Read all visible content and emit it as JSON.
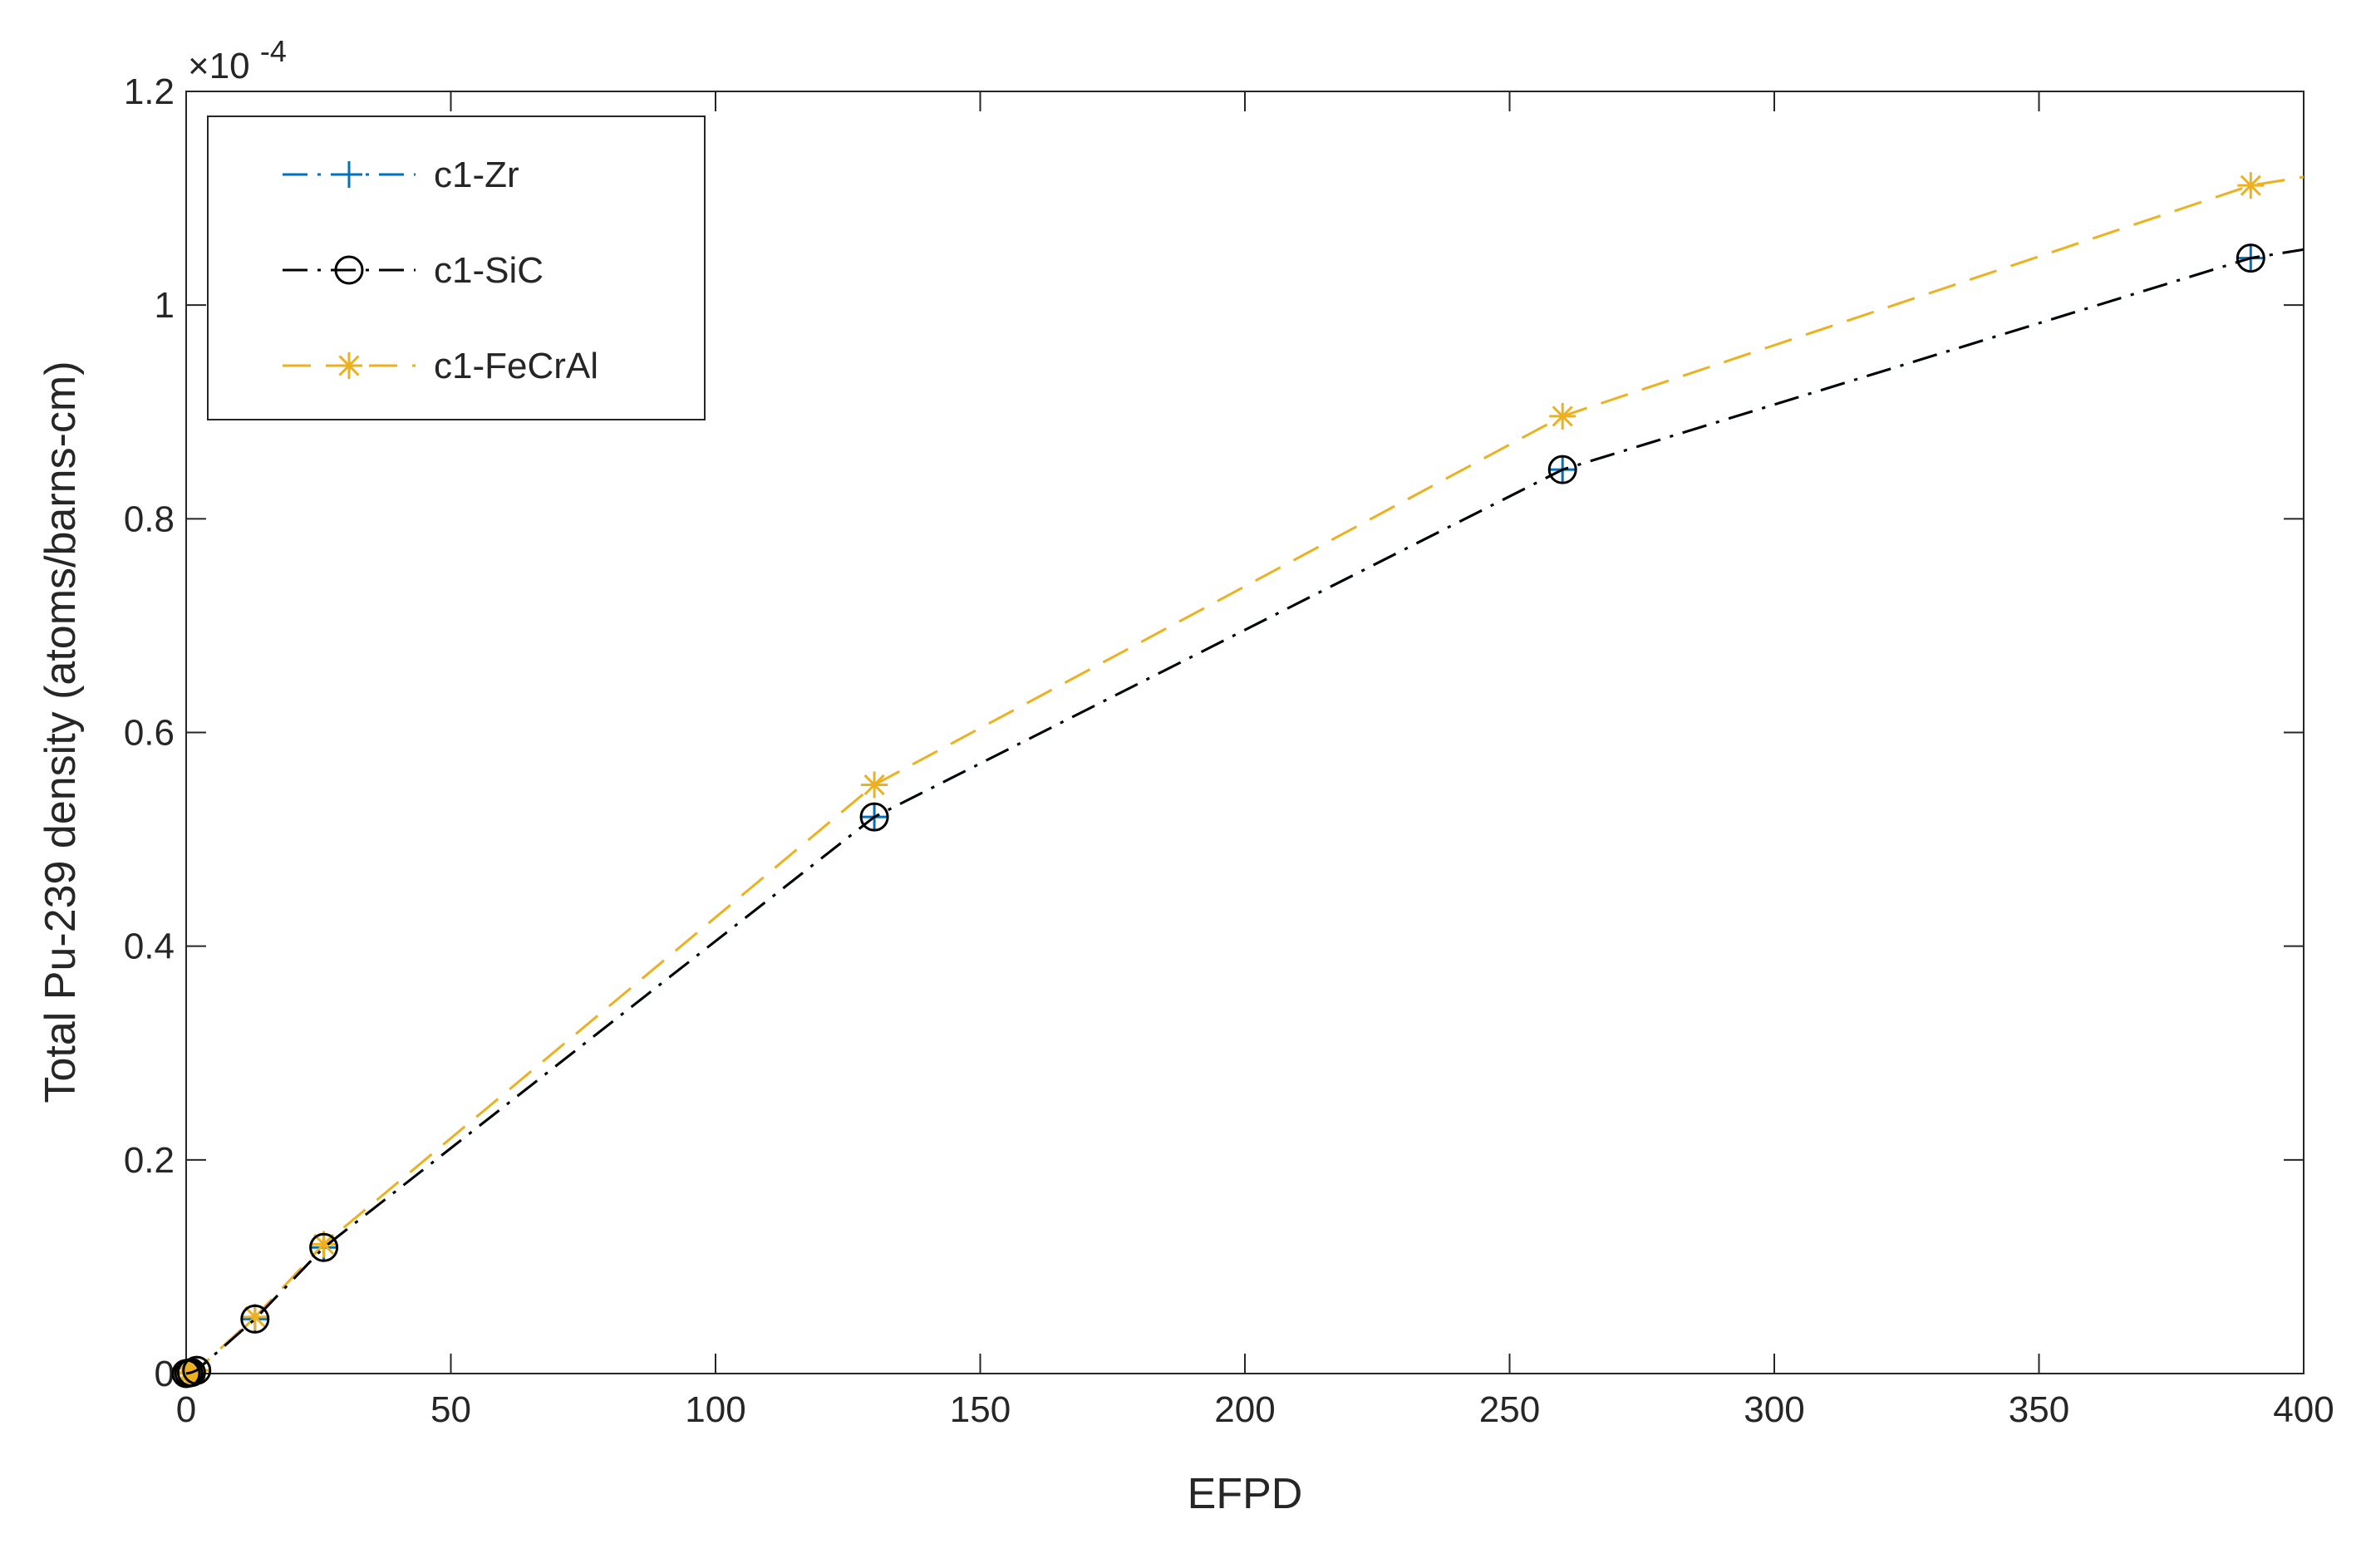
{
  "chart_data": {
    "type": "line",
    "xlabel": "EFPD",
    "ylabel": "Total Pu-239 density (atoms/barns-cm)",
    "y_multiplier": "×10",
    "y_exponent": "-4",
    "xlim": [
      0,
      400
    ],
    "ylim": [
      0,
      1.2
    ],
    "x_ticks": [
      0,
      50,
      100,
      150,
      200,
      250,
      300,
      350,
      400
    ],
    "y_ticks": [
      0,
      0.2,
      0.4,
      0.6,
      0.8,
      1.0,
      1.2
    ],
    "x_tick_labels": [
      "0",
      "50",
      "100",
      "150",
      "200",
      "250",
      "300",
      "350",
      "400"
    ],
    "y_tick_labels": [
      "0",
      "0.2",
      "0.4",
      "0.6",
      "0.8",
      "1",
      "1.2"
    ],
    "grid": false,
    "legend_position": "top-left",
    "series": [
      {
        "name": "c1-Zr",
        "color": "#0072BD",
        "line_style": "dash-dot",
        "marker": "plus",
        "x": [
          0,
          0.5,
          1,
          2,
          13,
          26,
          130,
          260,
          390,
          400
        ],
        "y": [
          0,
          0.0005,
          0.001,
          0.003,
          0.051,
          0.118,
          0.521,
          0.846,
          1.044,
          1.052
        ]
      },
      {
        "name": "c1-SiC",
        "color": "#000000",
        "line_style": "dash-dot",
        "marker": "circle",
        "x": [
          0,
          0.5,
          1,
          2,
          13,
          26,
          130,
          260,
          390,
          400
        ],
        "y": [
          0,
          0.0005,
          0.001,
          0.003,
          0.051,
          0.118,
          0.521,
          0.846,
          1.044,
          1.052
        ]
      },
      {
        "name": "c1-FeCrAl",
        "color": "#EDB120",
        "line_style": "dashed",
        "marker": "asterisk",
        "x": [
          0,
          0.5,
          1,
          2,
          13,
          26,
          130,
          260,
          390,
          400
        ],
        "y": [
          0,
          0.0005,
          0.001,
          0.003,
          0.053,
          0.121,
          0.551,
          0.896,
          1.112,
          1.12
        ]
      }
    ]
  }
}
